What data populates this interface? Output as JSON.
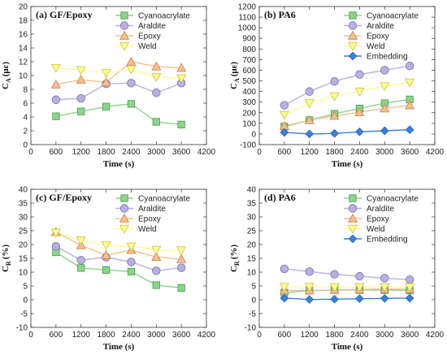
{
  "chart_data": [
    {
      "type": "line",
      "title": "(a) GF/Epoxy",
      "xlabel": "Time (s)",
      "ylabel_main": "C",
      "ylabel_sub": "A",
      "ylabel_unit": "(με)",
      "xlim": [
        0,
        4200
      ],
      "ylim": [
        0,
        20
      ],
      "xticks": [
        0,
        600,
        1200,
        1800,
        2400,
        3000,
        3600,
        4200
      ],
      "yticks": [
        0,
        2,
        4,
        6,
        8,
        10,
        12,
        14,
        16,
        18,
        20
      ],
      "x": [
        600,
        1200,
        1800,
        2400,
        3000,
        3600
      ],
      "legend_position": "top-right",
      "series": [
        {
          "name": "Cyanoacrylate",
          "values": [
            4.1,
            4.8,
            5.5,
            5.9,
            3.3,
            2.9
          ],
          "color": "#3f9f3f",
          "fill": "#8fd18f",
          "marker": "square"
        },
        {
          "name": "Araldite",
          "values": [
            6.5,
            6.7,
            8.8,
            8.9,
            7.5,
            8.9
          ],
          "color": "#7a6fb0",
          "fill": "#b9b0e0",
          "marker": "circle"
        },
        {
          "name": "Epoxy",
          "values": [
            8.7,
            9.4,
            9.0,
            12.0,
            11.3,
            11.1
          ],
          "color": "#c8804f",
          "fill": "#f2c08f",
          "marker": "triangle-up"
        },
        {
          "name": "Weld",
          "values": [
            11.1,
            10.8,
            10.4,
            10.9,
            9.8,
            9.6
          ],
          "color": "#c9c24a",
          "fill": "#fffb95",
          "marker": "triangle-down"
        }
      ]
    },
    {
      "type": "line",
      "title": "(b) PA6",
      "xlabel": "Time (s)",
      "ylabel_main": "C",
      "ylabel_sub": "A",
      "ylabel_unit": "(με)",
      "xlim": [
        0,
        4200
      ],
      "ylim": [
        -100,
        1200
      ],
      "xticks": [
        0,
        600,
        1200,
        1800,
        2400,
        3000,
        3600,
        4200
      ],
      "yticks": [
        -100,
        0,
        100,
        200,
        300,
        400,
        500,
        600,
        700,
        800,
        900,
        1000,
        1100,
        1200
      ],
      "x": [
        600,
        1200,
        1800,
        2400,
        3000,
        3600
      ],
      "legend_position": "top-right",
      "series": [
        {
          "name": "Cyanoacrylate",
          "values": [
            70,
            130,
            190,
            240,
            290,
            325
          ],
          "color": "#3f9f3f",
          "fill": "#8fd18f",
          "marker": "square"
        },
        {
          "name": "Araldite",
          "values": [
            270,
            400,
            495,
            560,
            600,
            640
          ],
          "color": "#7a6fb0",
          "fill": "#b9b0e0",
          "marker": "circle"
        },
        {
          "name": "Epoxy",
          "values": [
            75,
            130,
            170,
            205,
            240,
            270
          ],
          "color": "#c8804f",
          "fill": "#f2c08f",
          "marker": "triangle-up"
        },
        {
          "name": "Weld",
          "values": [
            180,
            290,
            355,
            400,
            450,
            485
          ],
          "color": "#c9c24a",
          "fill": "#fffb95",
          "marker": "triangle-down"
        },
        {
          "name": "Embedding",
          "values": [
            15,
            0,
            5,
            20,
            30,
            40
          ],
          "color": "#2a66b8",
          "fill": "#3b7fd6",
          "marker": "diamond"
        }
      ]
    },
    {
      "type": "line",
      "title": "(c) GF/Epoxy",
      "xlabel": "Time (s)",
      "ylabel_main": "C",
      "ylabel_sub": "R",
      "ylabel_unit": "(%)",
      "xlim": [
        0,
        4200
      ],
      "ylim": [
        -10,
        40
      ],
      "xticks": [
        0,
        600,
        1200,
        1800,
        2400,
        3000,
        3600,
        4200
      ],
      "yticks": [
        -10,
        -5,
        0,
        5,
        10,
        15,
        20,
        25,
        30,
        35,
        40
      ],
      "x": [
        600,
        1200,
        1800,
        2400,
        3000,
        3600
      ],
      "legend_position": "top-right",
      "series": [
        {
          "name": "Cyanoacrylate",
          "values": [
            17.2,
            11.5,
            10.8,
            10.2,
            5.3,
            4.3
          ],
          "color": "#3f9f3f",
          "fill": "#8fd18f",
          "marker": "square"
        },
        {
          "name": "Araldite",
          "values": [
            19.3,
            14.3,
            15.4,
            13.7,
            10.5,
            11.6
          ],
          "color": "#7a6fb0",
          "fill": "#b9b0e0",
          "marker": "circle"
        },
        {
          "name": "Epoxy",
          "values": [
            24.5,
            19.7,
            16.1,
            18.0,
            15.5,
            14.7
          ],
          "color": "#c8804f",
          "fill": "#f2c08f",
          "marker": "triangle-up"
        },
        {
          "name": "Weld",
          "values": [
            24.3,
            21.5,
            19.8,
            19.3,
            18.1,
            17.9
          ],
          "color": "#c9c24a",
          "fill": "#fffb95",
          "marker": "triangle-down"
        }
      ]
    },
    {
      "type": "line",
      "title": "(d) PA6",
      "xlabel": "Time (s)",
      "ylabel_main": "C",
      "ylabel_sub": "R",
      "ylabel_unit": "(%)",
      "xlim": [
        0,
        4200
      ],
      "ylim": [
        -10,
        40
      ],
      "xticks": [
        0,
        600,
        1200,
        1800,
        2400,
        3000,
        3600,
        4200
      ],
      "yticks": [
        -10,
        -5,
        0,
        5,
        10,
        15,
        20,
        25,
        30,
        35,
        40
      ],
      "x": [
        600,
        1200,
        1800,
        2400,
        3000,
        3600
      ],
      "legend_position": "top-right",
      "series": [
        {
          "name": "Cyanoacrylate",
          "values": [
            2.6,
            3.3,
            3.5,
            3.5,
            3.5,
            3.4
          ],
          "color": "#3f9f3f",
          "fill": "#8fd18f",
          "marker": "square"
        },
        {
          "name": "Araldite",
          "values": [
            11.2,
            10.2,
            9.2,
            8.5,
            7.8,
            7.3
          ],
          "color": "#7a6fb0",
          "fill": "#b9b0e0",
          "marker": "circle"
        },
        {
          "name": "Epoxy",
          "values": [
            3.4,
            3.4,
            3.6,
            3.7,
            3.9,
            3.8
          ],
          "color": "#c8804f",
          "fill": "#f2c08f",
          "marker": "triangle-up"
        },
        {
          "name": "Weld",
          "values": [
            4.7,
            4.7,
            4.6,
            4.6,
            4.6,
            4.6
          ],
          "color": "#c9c24a",
          "fill": "#fffb95",
          "marker": "triangle-down"
        },
        {
          "name": "Embedding",
          "values": [
            0.6,
            0.1,
            0.2,
            0.4,
            0.5,
            0.6
          ],
          "color": "#2a66b8",
          "fill": "#3b7fd6",
          "marker": "diamond"
        }
      ]
    }
  ]
}
